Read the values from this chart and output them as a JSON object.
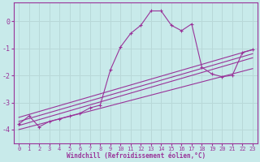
{
  "title": "",
  "xlabel": "Windchill (Refroidissement éolien,°C)",
  "ylabel": "",
  "bg_color": "#c8eaea",
  "grid_color": "#b8d8d8",
  "line_color": "#993399",
  "xlim": [
    -0.5,
    23.5
  ],
  "ylim": [
    -4.5,
    0.7
  ],
  "yticks": [
    -4,
    -3,
    -2,
    -1,
    0
  ],
  "xticks": [
    0,
    1,
    2,
    3,
    4,
    5,
    6,
    7,
    8,
    9,
    10,
    11,
    12,
    13,
    14,
    15,
    16,
    17,
    18,
    19,
    20,
    21,
    22,
    23
  ],
  "data_x": [
    0,
    1,
    2,
    3,
    4,
    5,
    6,
    7,
    8,
    9,
    10,
    11,
    12,
    13,
    14,
    15,
    16,
    17,
    18,
    19,
    20,
    21,
    22,
    23
  ],
  "data_y": [
    -3.8,
    -3.5,
    -3.9,
    -3.7,
    -3.6,
    -3.5,
    -3.4,
    -3.2,
    -3.1,
    -1.8,
    -0.95,
    -0.45,
    -0.15,
    0.38,
    0.38,
    -0.15,
    -0.35,
    -0.1,
    -1.7,
    -1.95,
    -2.05,
    -2.0,
    -1.15,
    -1.05
  ],
  "reg_lines": [
    {
      "x0": 0,
      "y0": -3.55,
      "x1": 23,
      "y1": -1.05
    },
    {
      "x0": 0,
      "y0": -3.7,
      "x1": 23,
      "y1": -1.2
    },
    {
      "x0": 0,
      "y0": -3.85,
      "x1": 23,
      "y1": -1.35
    },
    {
      "x0": 0,
      "y0": -4.0,
      "x1": 23,
      "y1": -1.75
    }
  ]
}
